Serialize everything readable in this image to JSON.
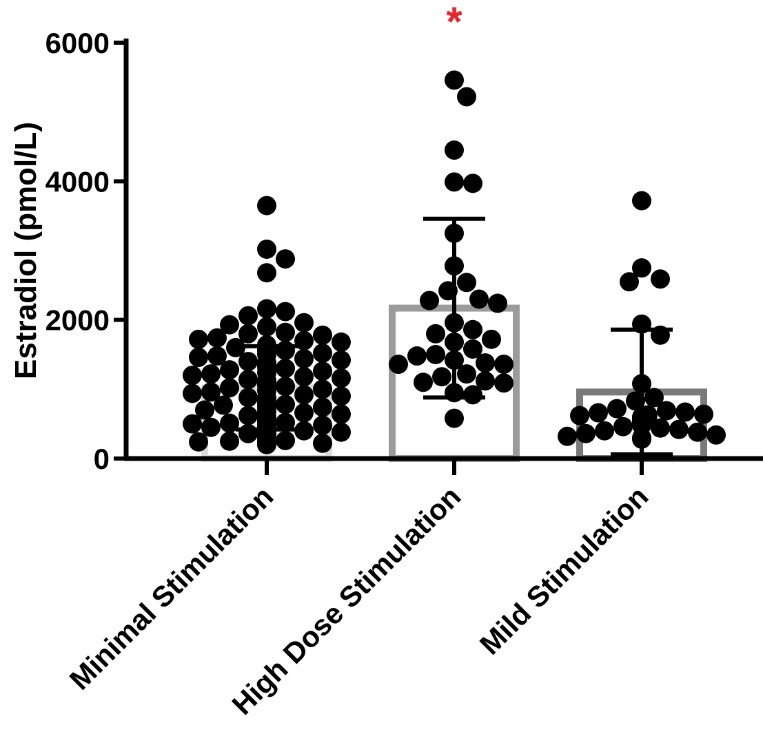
{
  "chart_data": {
    "type": "bar",
    "ylabel": "Estradiol (pmol/L)",
    "xlabel": "",
    "ylim": [
      0,
      6000
    ],
    "yticks": [
      0,
      2000,
      4000,
      6000
    ],
    "ytick_labels": [
      "0",
      "2000",
      "4000",
      "6000"
    ],
    "grid": false,
    "categories": [
      "Minimal Stimulation",
      "High Dose Stimulation",
      "Mild Stimulation"
    ],
    "means": [
      1020,
      2170,
      960
    ],
    "sd": [
      600,
      1290,
      900
    ],
    "bar_colors": [
      "#dcdcdc",
      "#9b9b9b",
      "#7a7a7a"
    ],
    "point_color": "#000000",
    "annotations": [
      {
        "text": "*",
        "category": "High Dose Stimulation",
        "color": "#e8262e"
      }
    ],
    "points": [
      [
        3650,
        3020,
        2880,
        2680,
        2160,
        2120,
        2060,
        1960,
        1930,
        1900,
        1820,
        1800,
        1780,
        1740,
        1720,
        1700,
        1680,
        1640,
        1620,
        1600,
        1580,
        1560,
        1540,
        1520,
        1500,
        1480,
        1460,
        1440,
        1420,
        1400,
        1380,
        1350,
        1320,
        1300,
        1280,
        1260,
        1240,
        1220,
        1200,
        1180,
        1160,
        1140,
        1120,
        1100,
        1080,
        1060,
        1040,
        1020,
        1000,
        980,
        960,
        940,
        920,
        900,
        880,
        870,
        860,
        850,
        840,
        830,
        820,
        810,
        800,
        790,
        780,
        770,
        760,
        740,
        720,
        700,
        680,
        660,
        640,
        620,
        600,
        580,
        560,
        540,
        530,
        520,
        510,
        500,
        490,
        480,
        470,
        460,
        450,
        440,
        430,
        420,
        410,
        400,
        390,
        380,
        370,
        360,
        350,
        340,
        330,
        320,
        310,
        300,
        290,
        280,
        270,
        260,
        250,
        240,
        230,
        220,
        210,
        200
      ],
      [
        5460,
        5220,
        4450,
        3990,
        3970,
        3250,
        2780,
        2540,
        2420,
        2300,
        2280,
        2240,
        1960,
        1860,
        1800,
        1720,
        1680,
        1580,
        1500,
        1480,
        1420,
        1380,
        1360,
        1360,
        1220,
        1180,
        1120,
        1100,
        1090,
        950,
        920,
        580
      ],
      [
        3720,
        2750,
        2590,
        2550,
        1940,
        1780,
        1080,
        880,
        830,
        720,
        690,
        670,
        660,
        640,
        630,
        620,
        600,
        580,
        560,
        540,
        520,
        500,
        480,
        460,
        440,
        420,
        400,
        380,
        360,
        340,
        320,
        300,
        280
      ]
    ]
  }
}
